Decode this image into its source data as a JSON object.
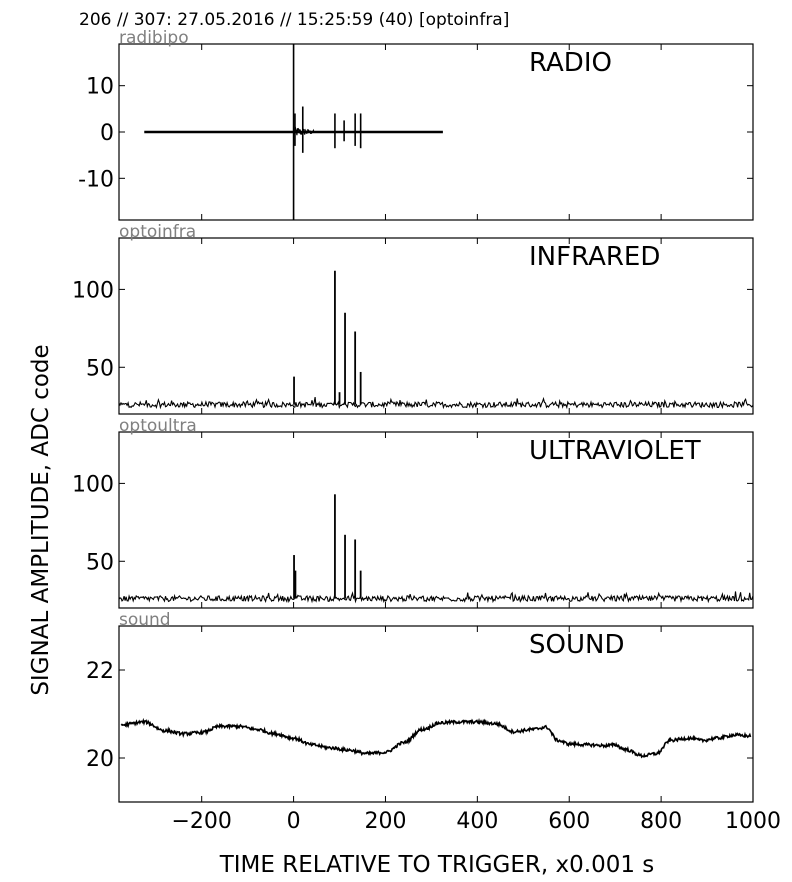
{
  "header": "206 // 307:   27.05.2016 // 15:25:59 (40)  [optoinfra]",
  "ylabel": "SIGNAL AMPLITUDE,  ADC code",
  "xlabel": "TIME RELATIVE TO TRIGGER,   x0.001 s",
  "x_ticks": [
    "−200",
    "0",
    "200",
    "400",
    "600",
    "800",
    "1000"
  ],
  "chart_data": [
    {
      "type": "line",
      "channel": "radibipo",
      "title": "RADIO",
      "xlim": [
        -380,
        1000
      ],
      "ylim": [
        -19,
        19
      ],
      "yticks": [
        -10,
        0,
        10
      ],
      "ytick_labels": [
        "-10",
        "0",
        "10"
      ],
      "baseline": {
        "from": -325,
        "to": 325,
        "y": 0
      },
      "spikes": [
        {
          "x": 0,
          "top": 19,
          "bottom": -19
        },
        {
          "x": 3,
          "top": 4,
          "bottom": -3
        },
        {
          "x": 20,
          "top": 5.5,
          "bottom": -4.5
        },
        {
          "x": 90,
          "top": 4,
          "bottom": -3.5
        },
        {
          "x": 110,
          "top": 2.5,
          "bottom": -2
        },
        {
          "x": 134,
          "top": 4,
          "bottom": -3
        },
        {
          "x": 146,
          "top": 4,
          "bottom": -3.5
        }
      ],
      "series": [
        {
          "values": []
        }
      ]
    },
    {
      "type": "line",
      "channel": "optoinfra",
      "title": "INFRARED",
      "xlim": [
        -380,
        1000
      ],
      "ylim": [
        20,
        133
      ],
      "yticks": [
        50,
        100
      ],
      "ytick_labels": [
        "50",
        "100"
      ],
      "baseline_level": 26,
      "spikes": [
        {
          "x": 1,
          "top": 44
        },
        {
          "x": 90,
          "top": 112
        },
        {
          "x": 100,
          "top": 34
        },
        {
          "x": 112,
          "top": 85
        },
        {
          "x": 134,
          "top": 73
        },
        {
          "x": 146,
          "top": 47
        }
      ],
      "series": [
        {
          "values": []
        }
      ]
    },
    {
      "type": "line",
      "channel": "optoultra",
      "title": "ULTRAVIOLET",
      "xlim": [
        -380,
        1000
      ],
      "ylim": [
        20,
        133
      ],
      "yticks": [
        50,
        100
      ],
      "ytick_labels": [
        "50",
        "100"
      ],
      "baseline_level": 26,
      "spikes": [
        {
          "x": 1,
          "top": 54
        },
        {
          "x": 4,
          "top": 44
        },
        {
          "x": 90,
          "top": 93
        },
        {
          "x": 112,
          "top": 67
        },
        {
          "x": 134,
          "top": 64
        },
        {
          "x": 146,
          "top": 44
        }
      ],
      "series": [
        {
          "values": []
        }
      ]
    },
    {
      "type": "line",
      "channel": "sound",
      "title": "SOUND",
      "xlim": [
        -380,
        1000
      ],
      "ylim": [
        19,
        23
      ],
      "yticks": [
        20,
        22
      ],
      "ytick_labels": [
        "20",
        "22"
      ],
      "x": [
        -375,
        -325,
        -280,
        -240,
        -200,
        -160,
        -120,
        -80,
        -40,
        0,
        40,
        80,
        120,
        160,
        200,
        240,
        280,
        320,
        360,
        400,
        440,
        480,
        520,
        550,
        575,
        600,
        640,
        680,
        700,
        720,
        760,
        790,
        820,
        860,
        890,
        920,
        960,
        995
      ],
      "series": [
        {
          "values": [
            20.75,
            20.82,
            20.62,
            20.55,
            20.58,
            20.72,
            20.72,
            20.65,
            20.55,
            20.45,
            20.3,
            20.23,
            20.18,
            20.1,
            20.13,
            20.35,
            20.65,
            20.8,
            20.82,
            20.82,
            20.78,
            20.6,
            20.65,
            20.7,
            20.4,
            20.32,
            20.3,
            20.28,
            20.3,
            20.2,
            20.05,
            20.1,
            20.4,
            20.45,
            20.4,
            20.45,
            20.52,
            20.5
          ]
        }
      ]
    }
  ]
}
